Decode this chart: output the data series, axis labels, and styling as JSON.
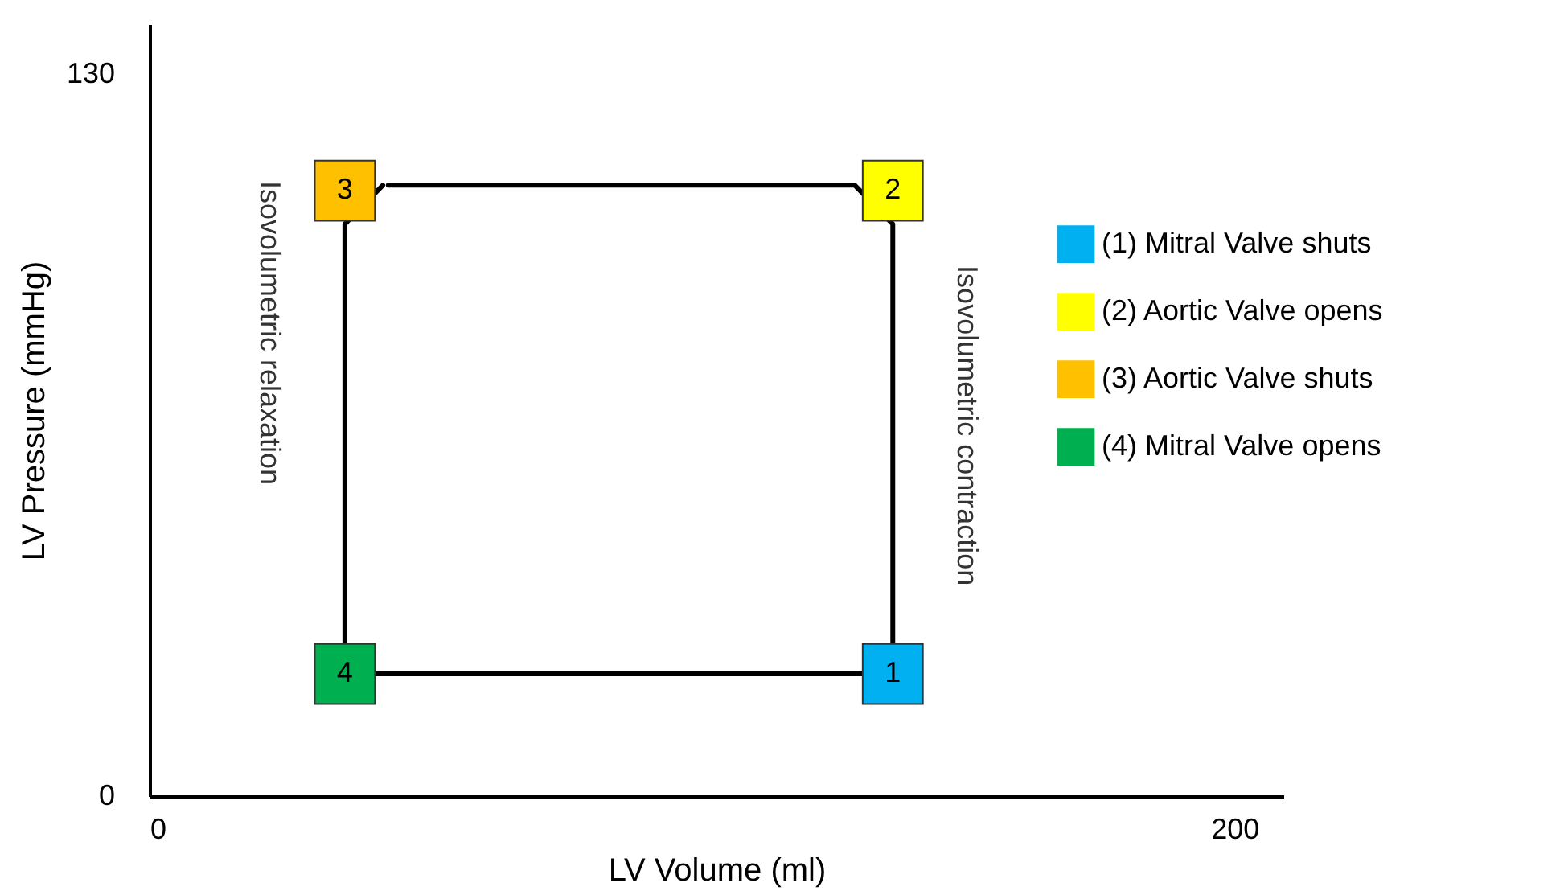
{
  "chart_data": {
    "type": "line",
    "xlabel": "LV Volume (ml)",
    "ylabel": "LV Pressure (mmHg)",
    "xlim": [
      0,
      209
    ],
    "ylim": [
      0,
      139
    ],
    "xticks": [
      0,
      200
    ],
    "yticks": [
      0,
      130
    ],
    "grid": false,
    "legend": "top right",
    "series": [
      {
        "color": "#000000",
        "marker": "none",
        "x": [
          43,
          36,
          36,
          137,
          137,
          130,
          44
        ],
        "values": [
          110,
          103,
          22,
          22,
          103,
          110,
          110
        ]
      },
      {
        "type": "scatter",
        "name": "(1) Mitral Valve shuts",
        "color": "#00b0f0",
        "marker": "square",
        "x": [
          137
        ],
        "values": [
          22
        ]
      },
      {
        "type": "scatter",
        "name": "(2) Aortic Valve opens",
        "color": "#ffff00",
        "marker": "square",
        "x": [
          137
        ],
        "values": [
          109
        ]
      },
      {
        "type": "scatter",
        "name": "(3) Aortic Valve shuts",
        "color": "#ffc000",
        "marker": "square",
        "x": [
          36
        ],
        "values": [
          109
        ]
      },
      {
        "type": "scatter",
        "name": "(4) Mitral Valve opens",
        "color": "#00b050",
        "marker": "square",
        "x": [
          36
        ],
        "values": [
          22
        ]
      }
    ],
    "annotations": [
      "1",
      "2",
      "3",
      "4",
      "Isovolumetric relaxation",
      "Isovolumetric contraction"
    ]
  }
}
